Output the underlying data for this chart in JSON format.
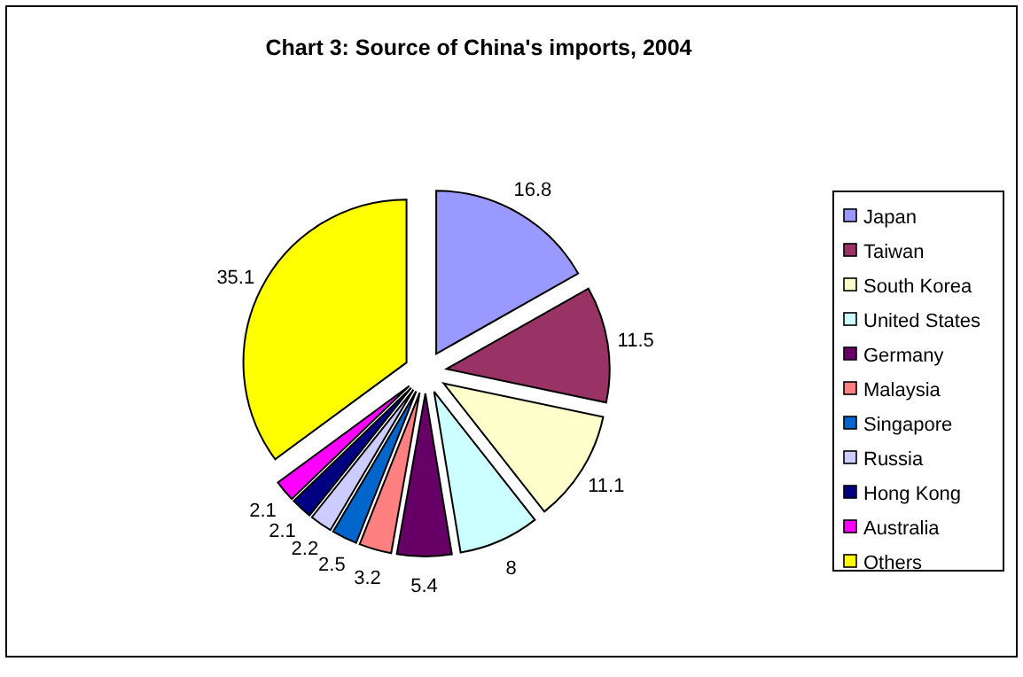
{
  "chart_data": {
    "type": "pie",
    "title": "Chart 3: Source of China's imports, 2004",
    "categories": [
      "Japan",
      "Taiwan",
      "South Korea",
      "United States",
      "Germany",
      "Malaysia",
      "Singapore",
      "Russia",
      "Hong Kong",
      "Australia",
      "Others"
    ],
    "values": [
      16.8,
      11.5,
      11.1,
      8,
      5.4,
      3.2,
      2.5,
      2.2,
      2.1,
      2.1,
      35.1
    ],
    "colors": [
      "#9999ff",
      "#993366",
      "#ffffcc",
      "#ccffff",
      "#660066",
      "#ff8080",
      "#0066cc",
      "#ccccff",
      "#000080",
      "#ff00ff",
      "#ffff00"
    ],
    "data_labels": true,
    "legend": "right"
  }
}
